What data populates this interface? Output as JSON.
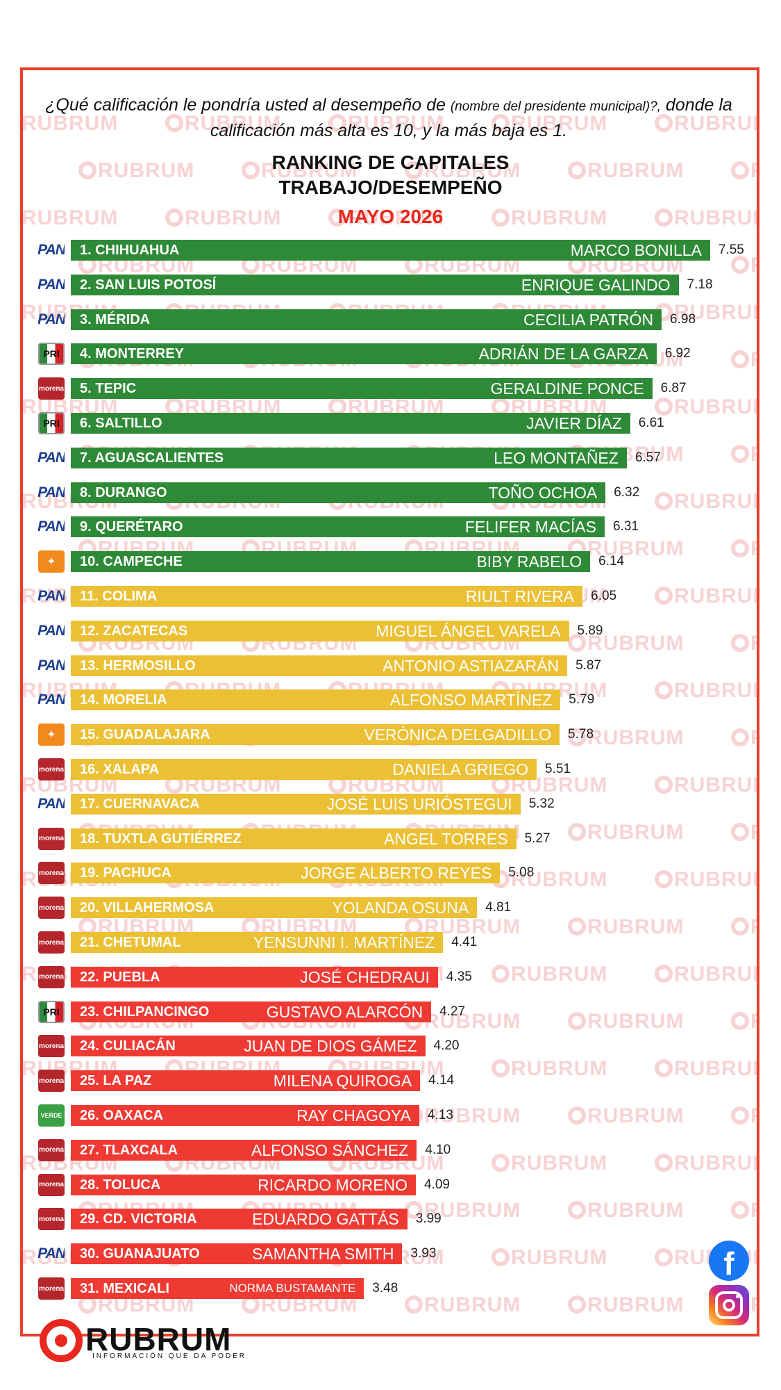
{
  "header": {
    "question_part1": "¿Qué calificación le pondría usted al desempeño de",
    "question_small": "(nombre del presidente municipal)?,",
    "question_part2": "donde la calificación más alta es 10, y la más baja es 1.",
    "title_line1": "RANKING DE CAPITALES",
    "title_line2": "TRABAJO/DESEMPEÑO",
    "date": "MAYO 2026"
  },
  "watermark_text": "RUBRUM",
  "branding": {
    "logo_word": "RUBRUM",
    "tagline": "INFORMACIÓN QUE DA PODER",
    "social": [
      "facebook-icon",
      "instagram-icon"
    ]
  },
  "colors": {
    "frame": "#e8412a",
    "green": "#2f8a38",
    "yellow": "#ebc035",
    "red": "#ef3a34",
    "date": "#e8281e"
  },
  "chart_data": {
    "type": "bar",
    "orientation": "horizontal",
    "title": "RANKING DE CAPITALES TRABAJO/DESEMPEÑO",
    "subtitle": "MAYO 2026",
    "xlim": [
      0,
      10
    ],
    "rows": [
      {
        "label": "1. CHIHUAHUA",
        "mayor": "MARCO BONILLA",
        "value": 7.55,
        "value_text": "7.55",
        "party": "PAN",
        "color": "green"
      },
      {
        "label": "2. SAN LUIS POTOSÍ",
        "mayor": "ENRIQUE GALINDO",
        "value": 7.18,
        "value_text": "7.18",
        "party": "PAN",
        "color": "green"
      },
      {
        "label": "3. MÉRIDA",
        "mayor": "CECILIA PATRÓN",
        "value": 6.98,
        "value_text": "6.98",
        "party": "PAN",
        "color": "green"
      },
      {
        "label": "4. MONTERREY",
        "mayor": "ADRIÁN DE LA GARZA",
        "value": 6.92,
        "value_text": "6.92",
        "party": "PRI",
        "color": "green"
      },
      {
        "label": "5. TEPIC",
        "mayor": "GERALDINE PONCE",
        "value": 6.87,
        "value_text": "6.87",
        "party": "morena",
        "color": "green"
      },
      {
        "label": "6. SALTILLO",
        "mayor": "JAVIER DÍAZ",
        "value": 6.61,
        "value_text": "6.61",
        "party": "PRI",
        "color": "green"
      },
      {
        "label": "7. AGUASCALIENTES",
        "mayor": "LEO MONTAÑEZ",
        "value": 6.57,
        "value_text": "6.57",
        "party": "PAN",
        "color": "green"
      },
      {
        "label": "8. DURANGO",
        "mayor": "TOÑO OCHOA",
        "value": 6.32,
        "value_text": "6.32",
        "party": "PAN",
        "color": "green"
      },
      {
        "label": "9. QUERÉTARO",
        "mayor": "FELIFER MACÍAS",
        "value": 6.31,
        "value_text": "6.31",
        "party": "PAN",
        "color": "green"
      },
      {
        "label": "10. CAMPECHE",
        "mayor": "BIBY RABELO",
        "value": 6.14,
        "value_text": "6.14",
        "party": "MC",
        "color": "green"
      },
      {
        "label": "11. COLIMA",
        "mayor": "RIULT RIVERA",
        "value": 6.05,
        "value_text": "6.05",
        "party": "PAN",
        "color": "yellow"
      },
      {
        "label": "12. ZACATECAS",
        "mayor": "MIGUEL ÁNGEL VARELA",
        "value": 5.89,
        "value_text": "5.89",
        "party": "PAN",
        "color": "yellow"
      },
      {
        "label": "13. HERMOSILLO",
        "mayor": "ANTONIO ASTIAZARÁN",
        "value": 5.87,
        "value_text": "5.87",
        "party": "PAN",
        "color": "yellow"
      },
      {
        "label": "14. MORELIA",
        "mayor": "ALFONSO MARTÍNEZ",
        "value": 5.79,
        "value_text": "5.79",
        "party": "PAN",
        "color": "yellow"
      },
      {
        "label": "15. GUADALAJARA",
        "mayor": "VERÓNICA DELGADILLO",
        "value": 5.78,
        "value_text": "5.78",
        "party": "MC",
        "color": "yellow"
      },
      {
        "label": "16. XALAPA",
        "mayor": "DANIELA GRIEGO",
        "value": 5.51,
        "value_text": "5.51",
        "party": "morena",
        "color": "yellow"
      },
      {
        "label": "17. CUERNAVACA",
        "mayor": "JOSÉ LUIS URIÓSTEGUI",
        "value": 5.32,
        "value_text": "5.32",
        "party": "PAN",
        "color": "yellow"
      },
      {
        "label": "18. TUXTLA GUTIÉRREZ",
        "mayor": "ANGEL TORRES",
        "value": 5.27,
        "value_text": "5.27",
        "party": "morena",
        "color": "yellow"
      },
      {
        "label": "19. PACHUCA",
        "mayor": "JORGE ALBERTO REYES",
        "value": 5.08,
        "value_text": "5.08",
        "party": "morena",
        "color": "yellow"
      },
      {
        "label": "20. VILLAHERMOSA",
        "mayor": "YOLANDA OSUNA",
        "value": 4.81,
        "value_text": "4.81",
        "party": "morena",
        "color": "yellow"
      },
      {
        "label": "21. CHETUMAL",
        "mayor": "YENSUNNI I. MARTÍNEZ",
        "value": 4.41,
        "value_text": "4.41",
        "party": "morena",
        "color": "yellow"
      },
      {
        "label": "22. PUEBLA",
        "mayor": "JOSÉ CHEDRAUI",
        "value": 4.35,
        "value_text": "4.35",
        "party": "morena",
        "color": "red"
      },
      {
        "label": "23. CHILPANCINGO",
        "mayor": "GUSTAVO ALARCÓN",
        "value": 4.27,
        "value_text": "4.27",
        "party": "PRI",
        "color": "red"
      },
      {
        "label": "24. CULIACÁN",
        "mayor": "JUAN DE DIOS GÁMEZ",
        "value": 4.2,
        "value_text": "4.20",
        "party": "morena",
        "color": "red"
      },
      {
        "label": "25. LA PAZ",
        "mayor": "MILENA QUIROGA",
        "value": 4.14,
        "value_text": "4.14",
        "party": "morena",
        "color": "red"
      },
      {
        "label": "26. OAXACA",
        "mayor": "RAY CHAGOYA",
        "value": 4.13,
        "value_text": "4.13",
        "party": "VERDE",
        "color": "red"
      },
      {
        "label": "27. TLAXCALA",
        "mayor": "ALFONSO SÁNCHEZ",
        "value": 4.1,
        "value_text": "4.10",
        "party": "morena",
        "color": "red"
      },
      {
        "label": "28. TOLUCA",
        "mayor": "RICARDO MORENO",
        "value": 4.09,
        "value_text": "4.09",
        "party": "morena",
        "color": "red"
      },
      {
        "label": "29. CD. VICTORIA",
        "mayor": "EDUARDO GATTÁS",
        "value": 3.99,
        "value_text": "3.99",
        "party": "morena",
        "color": "red"
      },
      {
        "label": "30. GUANAJUATO",
        "mayor": "SAMANTHA SMITH",
        "value": 3.93,
        "value_text": "3.93",
        "party": "PAN",
        "color": "red"
      },
      {
        "label": "31. MEXICALI",
        "mayor": "NORMA BUSTAMANTE",
        "value": 3.48,
        "value_text": "3.48",
        "party": "morena",
        "color": "red"
      }
    ]
  }
}
